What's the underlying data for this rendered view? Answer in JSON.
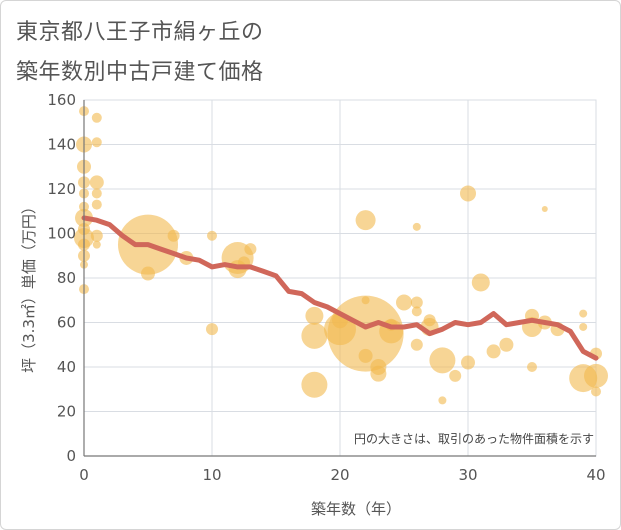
{
  "title_line1": "東京都八王子市絹ヶ丘の",
  "title_line2": "築年数別中古戸建て価格",
  "note": "円の大きさは、取引のあった物件面積を示す",
  "chart_data": {
    "type": "scatter",
    "xlabel": "築年数（年）",
    "ylabel": "坪（3.3㎡）単価（万円）",
    "xlim": [
      0,
      40
    ],
    "ylim": [
      0,
      160
    ],
    "xticks": [
      0,
      10,
      20,
      30,
      40
    ],
    "yticks": [
      0,
      20,
      40,
      60,
      80,
      100,
      120,
      140,
      160
    ],
    "grid": true,
    "colors": {
      "bubble": "#f2b94e",
      "line": "#d0675a",
      "grid": "#d9dde3",
      "axis": "#777777"
    },
    "bubbles": [
      {
        "x": 0,
        "y": 155,
        "size": 5
      },
      {
        "x": 1,
        "y": 152,
        "size": 5
      },
      {
        "x": 0,
        "y": 140,
        "size": 8
      },
      {
        "x": 1,
        "y": 141,
        "size": 5
      },
      {
        "x": 0,
        "y": 130,
        "size": 7
      },
      {
        "x": 0,
        "y": 123,
        "size": 6
      },
      {
        "x": 1,
        "y": 123,
        "size": 7
      },
      {
        "x": 0,
        "y": 118,
        "size": 5
      },
      {
        "x": 1,
        "y": 118,
        "size": 5
      },
      {
        "x": 0,
        "y": 112,
        "size": 5
      },
      {
        "x": 1,
        "y": 113,
        "size": 5
      },
      {
        "x": 0,
        "y": 107,
        "size": 9
      },
      {
        "x": 0,
        "y": 102,
        "size": 6
      },
      {
        "x": 0,
        "y": 98,
        "size": 10
      },
      {
        "x": 1,
        "y": 99,
        "size": 6
      },
      {
        "x": 0,
        "y": 95,
        "size": 6
      },
      {
        "x": 1,
        "y": 95,
        "size": 4
      },
      {
        "x": 0,
        "y": 90,
        "size": 6
      },
      {
        "x": 0,
        "y": 86,
        "size": 4
      },
      {
        "x": 0,
        "y": 75,
        "size": 5
      },
      {
        "x": 5,
        "y": 95,
        "size": 30
      },
      {
        "x": 5,
        "y": 82,
        "size": 7
      },
      {
        "x": 7,
        "y": 99,
        "size": 6
      },
      {
        "x": 8,
        "y": 89,
        "size": 7
      },
      {
        "x": 10,
        "y": 99,
        "size": 5
      },
      {
        "x": 10,
        "y": 57,
        "size": 6
      },
      {
        "x": 12,
        "y": 89,
        "size": 16
      },
      {
        "x": 12,
        "y": 84,
        "size": 9
      },
      {
        "x": 12.5,
        "y": 87,
        "size": 6
      },
      {
        "x": 13,
        "y": 93,
        "size": 6
      },
      {
        "x": 18,
        "y": 63,
        "size": 9
      },
      {
        "x": 18,
        "y": 54,
        "size": 13
      },
      {
        "x": 18,
        "y": 32,
        "size": 13
      },
      {
        "x": 20,
        "y": 57,
        "size": 16
      },
      {
        "x": 20,
        "y": 61,
        "size": 8
      },
      {
        "x": 22,
        "y": 106,
        "size": 10
      },
      {
        "x": 22,
        "y": 55,
        "size": 38
      },
      {
        "x": 22,
        "y": 70,
        "size": 4
      },
      {
        "x": 22,
        "y": 45,
        "size": 7
      },
      {
        "x": 23,
        "y": 40,
        "size": 8
      },
      {
        "x": 23,
        "y": 37,
        "size": 8
      },
      {
        "x": 24,
        "y": 56,
        "size": 12
      },
      {
        "x": 24,
        "y": 59,
        "size": 6
      },
      {
        "x": 25,
        "y": 69,
        "size": 8
      },
      {
        "x": 26,
        "y": 103,
        "size": 4
      },
      {
        "x": 26,
        "y": 69,
        "size": 6
      },
      {
        "x": 26,
        "y": 65,
        "size": 5
      },
      {
        "x": 26,
        "y": 50,
        "size": 6
      },
      {
        "x": 27,
        "y": 58,
        "size": 9
      },
      {
        "x": 27,
        "y": 61,
        "size": 6
      },
      {
        "x": 28,
        "y": 43,
        "size": 13
      },
      {
        "x": 28,
        "y": 25,
        "size": 4
      },
      {
        "x": 29,
        "y": 36,
        "size": 6
      },
      {
        "x": 30,
        "y": 118,
        "size": 8
      },
      {
        "x": 30,
        "y": 42,
        "size": 7
      },
      {
        "x": 31,
        "y": 78,
        "size": 9
      },
      {
        "x": 32,
        "y": 47,
        "size": 7
      },
      {
        "x": 33,
        "y": 50,
        "size": 7
      },
      {
        "x": 35,
        "y": 63,
        "size": 7
      },
      {
        "x": 35,
        "y": 58,
        "size": 10
      },
      {
        "x": 35,
        "y": 40,
        "size": 5
      },
      {
        "x": 36,
        "y": 111,
        "size": 3
      },
      {
        "x": 36,
        "y": 60,
        "size": 7
      },
      {
        "x": 37,
        "y": 57,
        "size": 7
      },
      {
        "x": 39,
        "y": 64,
        "size": 4
      },
      {
        "x": 39,
        "y": 58,
        "size": 4
      },
      {
        "x": 39,
        "y": 35,
        "size": 14
      },
      {
        "x": 40,
        "y": 36,
        "size": 12
      },
      {
        "x": 40,
        "y": 46,
        "size": 6
      },
      {
        "x": 40,
        "y": 29,
        "size": 5
      }
    ],
    "line": {
      "x": [
        0,
        1,
        2,
        3,
        4,
        5,
        6,
        7,
        8,
        9,
        10,
        11,
        12,
        13,
        14,
        15,
        16,
        17,
        18,
        19,
        20,
        21,
        22,
        23,
        24,
        25,
        26,
        27,
        28,
        29,
        30,
        31,
        32,
        33,
        34,
        35,
        36,
        37,
        38,
        39,
        40
      ],
      "y": [
        107,
        106,
        104,
        99,
        95,
        95,
        93,
        91,
        89,
        88,
        85,
        86,
        85,
        85,
        83,
        81,
        74,
        73,
        69,
        67,
        64,
        61,
        58,
        60,
        58,
        58,
        59,
        55,
        57,
        60,
        59,
        60,
        64,
        59,
        60,
        61,
        60,
        59,
        56,
        47,
        44
      ]
    }
  }
}
